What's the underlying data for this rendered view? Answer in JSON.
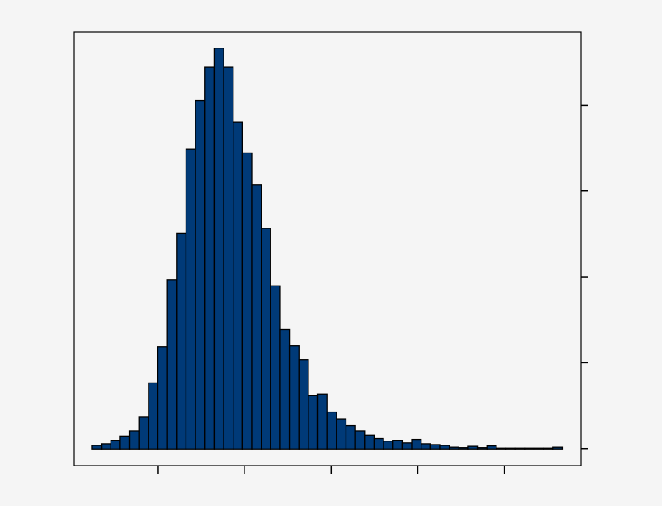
{
  "chart_data": {
    "type": "bar",
    "subtype": "histogram",
    "title": "",
    "xlabel": "",
    "ylabel": "",
    "x_ticks": [
      1,
      2,
      3,
      4,
      5
    ],
    "y_ticks": [
      0,
      1,
      2,
      3,
      4
    ],
    "tick_labels_shown": false,
    "xlim": [
      0.03,
      5.89
    ],
    "ylim": [
      -0.2,
      4.85
    ],
    "bin_start": 0.235,
    "bin_width": 0.1087,
    "values": [
      0.03,
      0.05,
      0.09,
      0.14,
      0.2,
      0.36,
      0.76,
      1.18,
      1.96,
      2.5,
      3.48,
      4.05,
      4.44,
      4.66,
      4.44,
      3.8,
      3.44,
      3.07,
      2.56,
      1.89,
      1.38,
      1.19,
      1.03,
      0.61,
      0.63,
      0.42,
      0.34,
      0.26,
      0.2,
      0.15,
      0.11,
      0.08,
      0.09,
      0.06,
      0.1,
      0.05,
      0.04,
      0.03,
      0.01,
      0.005,
      0.02,
      0.005,
      0.025,
      0,
      0,
      0,
      0,
      0,
      0,
      0.01
    ],
    "grid": false,
    "legend": "none",
    "colors": {
      "bar_fill": "#003a78",
      "bar_edge": "#000000",
      "background": "#f5f5f5"
    }
  }
}
